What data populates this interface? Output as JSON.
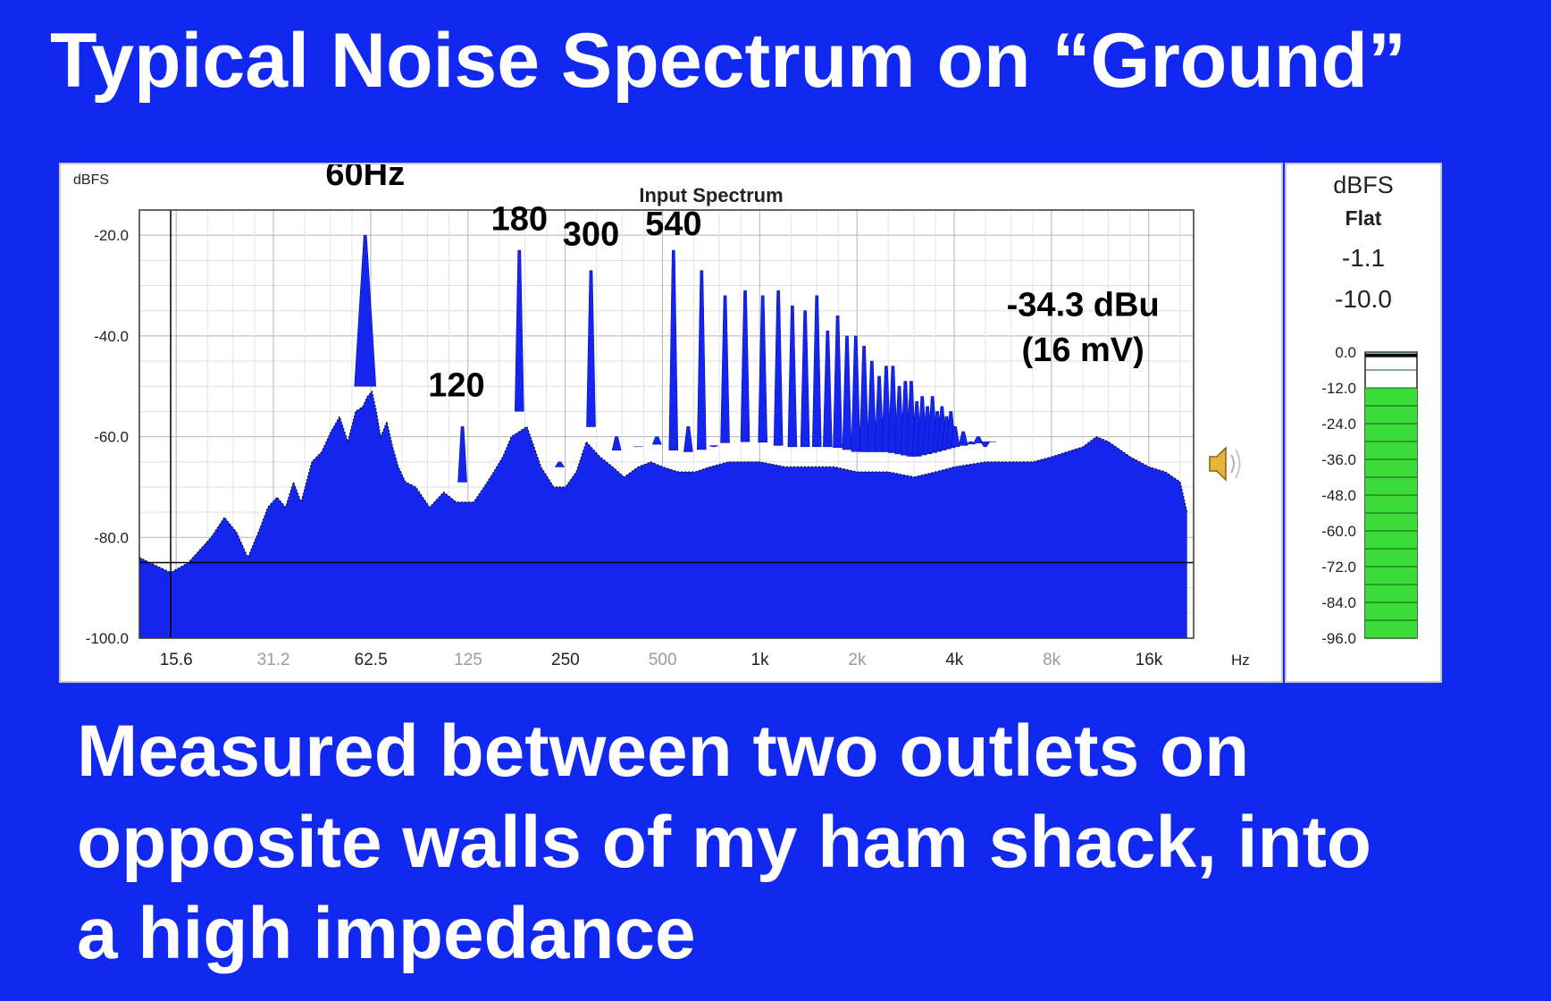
{
  "slide": {
    "title": "Typical Noise Spectrum on “Ground”",
    "caption_lines": [
      "Measured between two outlets on",
      "opposite walls of my ham shack, into",
      "a high impedance"
    ]
  },
  "chart_data": {
    "type": "area",
    "title": "Input Spectrum",
    "ylabel": "dBFS",
    "xlabel": "Hz",
    "x_scale": "log2",
    "xlim": [
      12,
      22000
    ],
    "ylim": [
      -100,
      -15
    ],
    "grid": true,
    "x_ticks": [
      {
        "value": 15.6,
        "label": "15.6",
        "major": true
      },
      {
        "value": 31.2,
        "label": "31.2",
        "major": false
      },
      {
        "value": 62.5,
        "label": "62.5",
        "major": true
      },
      {
        "value": 125,
        "label": "125",
        "major": false
      },
      {
        "value": 250,
        "label": "250",
        "major": true
      },
      {
        "value": 500,
        "label": "500",
        "major": false
      },
      {
        "value": 1000,
        "label": "1k",
        "major": true
      },
      {
        "value": 2000,
        "label": "2k",
        "major": false
      },
      {
        "value": 4000,
        "label": "4k",
        "major": true
      },
      {
        "value": 8000,
        "label": "8k",
        "major": false
      },
      {
        "value": 16000,
        "label": "16k",
        "major": true
      }
    ],
    "y_ticks": [
      {
        "value": -20,
        "label": "-20.0"
      },
      {
        "value": -40,
        "label": "-40.0"
      },
      {
        "value": -60,
        "label": "-60.0"
      },
      {
        "value": -80,
        "label": "-80.0"
      },
      {
        "value": -100,
        "label": "-100.0"
      }
    ],
    "floor_db": -85,
    "cursor_hz": 15,
    "envelope": [
      [
        12,
        -84
      ],
      [
        15,
        -87
      ],
      [
        17,
        -85
      ],
      [
        20,
        -80
      ],
      [
        22,
        -76
      ],
      [
        24,
        -79
      ],
      [
        26,
        -84
      ],
      [
        28,
        -79
      ],
      [
        30,
        -74
      ],
      [
        32,
        -72
      ],
      [
        34,
        -74
      ],
      [
        36,
        -69
      ],
      [
        38,
        -73
      ],
      [
        41,
        -65
      ],
      [
        44,
        -63
      ],
      [
        47,
        -59
      ],
      [
        50,
        -56
      ],
      [
        53,
        -61
      ],
      [
        56,
        -55
      ],
      [
        59,
        -54
      ],
      [
        61,
        -52
      ],
      [
        63,
        -51
      ],
      [
        65,
        -55
      ],
      [
        67,
        -60
      ],
      [
        70,
        -57
      ],
      [
        73,
        -62
      ],
      [
        76,
        -66
      ],
      [
        80,
        -69
      ],
      [
        86,
        -70
      ],
      [
        95,
        -74
      ],
      [
        105,
        -71
      ],
      [
        115,
        -73
      ],
      [
        130,
        -73
      ],
      [
        140,
        -70
      ],
      [
        150,
        -67
      ],
      [
        160,
        -64
      ],
      [
        170,
        -60
      ],
      [
        190,
        -58
      ],
      [
        200,
        -62
      ],
      [
        210,
        -66
      ],
      [
        230,
        -70
      ],
      [
        250,
        -70
      ],
      [
        270,
        -67
      ],
      [
        290,
        -61
      ],
      [
        320,
        -64
      ],
      [
        350,
        -66
      ],
      [
        380,
        -68
      ],
      [
        420,
        -66
      ],
      [
        460,
        -65
      ],
      [
        500,
        -66
      ],
      [
        560,
        -67
      ],
      [
        630,
        -67
      ],
      [
        700,
        -66
      ],
      [
        800,
        -65
      ],
      [
        900,
        -65
      ],
      [
        1000,
        -65
      ],
      [
        1200,
        -66
      ],
      [
        1400,
        -66
      ],
      [
        1700,
        -66
      ],
      [
        2000,
        -67
      ],
      [
        2500,
        -67
      ],
      [
        3000,
        -68
      ],
      [
        3500,
        -67
      ],
      [
        4000,
        -66
      ],
      [
        5000,
        -65
      ],
      [
        6000,
        -65
      ],
      [
        7000,
        -65
      ],
      [
        8000,
        -64
      ],
      [
        10000,
        -62
      ],
      [
        11000,
        -60
      ],
      [
        12000,
        -61
      ],
      [
        14000,
        -64
      ],
      [
        16000,
        -66
      ],
      [
        18000,
        -67
      ],
      [
        20000,
        -69
      ],
      [
        21000,
        -75
      ]
    ],
    "peaks": [
      {
        "x": 60,
        "y": -20
      },
      {
        "x": 120,
        "y": -58
      },
      {
        "x": 180,
        "y": -23
      },
      {
        "x": 240,
        "y": -65
      },
      {
        "x": 300,
        "y": -27
      },
      {
        "x": 360,
        "y": -60
      },
      {
        "x": 420,
        "y": -62
      },
      {
        "x": 480,
        "y": -60
      },
      {
        "x": 540,
        "y": -23
      },
      {
        "x": 600,
        "y": -58
      },
      {
        "x": 660,
        "y": -27
      },
      {
        "x": 720,
        "y": -62
      },
      {
        "x": 780,
        "y": -32
      },
      {
        "x": 900,
        "y": -31
      },
      {
        "x": 1020,
        "y": -32
      },
      {
        "x": 1140,
        "y": -31
      },
      {
        "x": 1260,
        "y": -34
      },
      {
        "x": 1380,
        "y": -35
      },
      {
        "x": 1500,
        "y": -32
      },
      {
        "x": 1620,
        "y": -39
      },
      {
        "x": 1740,
        "y": -36
      },
      {
        "x": 1860,
        "y": -40
      },
      {
        "x": 1980,
        "y": -40
      },
      {
        "x": 2100,
        "y": -42
      },
      {
        "x": 2220,
        "y": -45
      },
      {
        "x": 2340,
        "y": -48
      },
      {
        "x": 2460,
        "y": -46
      },
      {
        "x": 2580,
        "y": -46
      },
      {
        "x": 2700,
        "y": -50
      },
      {
        "x": 2820,
        "y": -49
      },
      {
        "x": 2940,
        "y": -49
      },
      {
        "x": 3060,
        "y": -53
      },
      {
        "x": 3180,
        "y": -52
      },
      {
        "x": 3300,
        "y": -54
      },
      {
        "x": 3420,
        "y": -52
      },
      {
        "x": 3540,
        "y": -55
      },
      {
        "x": 3660,
        "y": -54
      },
      {
        "x": 3780,
        "y": -56
      },
      {
        "x": 3900,
        "y": -55
      },
      {
        "x": 4020,
        "y": -58
      },
      {
        "x": 4260,
        "y": -59
      },
      {
        "x": 4500,
        "y": -61
      },
      {
        "x": 4740,
        "y": -60
      },
      {
        "x": 4980,
        "y": -62
      },
      {
        "x": 5220,
        "y": -61
      }
    ],
    "annotations": [
      {
        "text": "60Hz",
        "x": 60,
        "y": -10
      },
      {
        "text": "180",
        "x": 180,
        "y": -19
      },
      {
        "text": "300",
        "x": 300,
        "y": -22
      },
      {
        "text": "540",
        "x": 540,
        "y": -20
      },
      {
        "text": "120",
        "x": 115,
        "y": -52
      },
      {
        "text": "-34.3 dBu",
        "x": 10000,
        "y": -36
      },
      {
        "text": "(16 mV)",
        "x": 10000,
        "y": -45
      }
    ]
  },
  "meter": {
    "unit": "dBFS",
    "weighting": "Flat",
    "peak_value": "-1.1",
    "rms_value": "-10.0",
    "level_db": -12,
    "peak_hold_db": -1.1,
    "range_db": [
      0,
      -96
    ],
    "scale_labels": [
      "0.0",
      "-12.0",
      "-24.0",
      "-36.0",
      "-48.0",
      "-60.0",
      "-72.0",
      "-84.0",
      "-96.0"
    ],
    "bar_color": "#3adc3a"
  },
  "icons": {
    "speaker": "speaker-icon"
  }
}
